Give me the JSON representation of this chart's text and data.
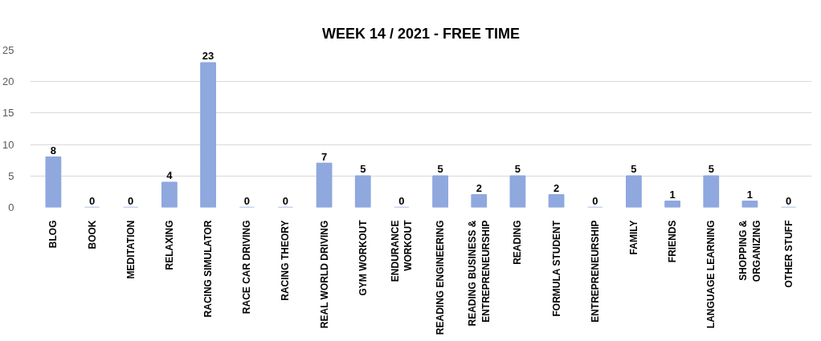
{
  "chart_data": {
    "type": "bar",
    "title": "WEEK 14 / 2021 - FREE TIME",
    "categories": [
      "BLOG",
      "BOOK",
      "MEDITATION",
      "RELAXING",
      "RACING SIMULATOR",
      "RACE CAR DRIVING",
      "RACING THEORY",
      "REAL WORLD DRIVING",
      "GYM WORKOUT",
      "ENDURANCE\nWORKOUT",
      "READING ENGINEERING",
      "READING BUSINESS &\nENTREPRENEURSHIP",
      "READING",
      "FORMULA STUDENT",
      "ENTREPRENEURSHIP",
      "FAMILY",
      "FRIENDS",
      "LANGUAGE LEARNING",
      "SHOPPING &\nORGANIZING",
      "OTHER STUFF"
    ],
    "values": [
      8,
      0,
      0,
      4,
      23,
      0,
      0,
      7,
      5,
      0,
      5,
      2,
      5,
      2,
      0,
      5,
      1,
      5,
      1,
      0
    ],
    "color": "#8fa8de",
    "ylim": [
      0,
      25
    ],
    "yticks": [
      0,
      5,
      10,
      15,
      20,
      25
    ],
    "grid": "y",
    "data_labels": true
  }
}
